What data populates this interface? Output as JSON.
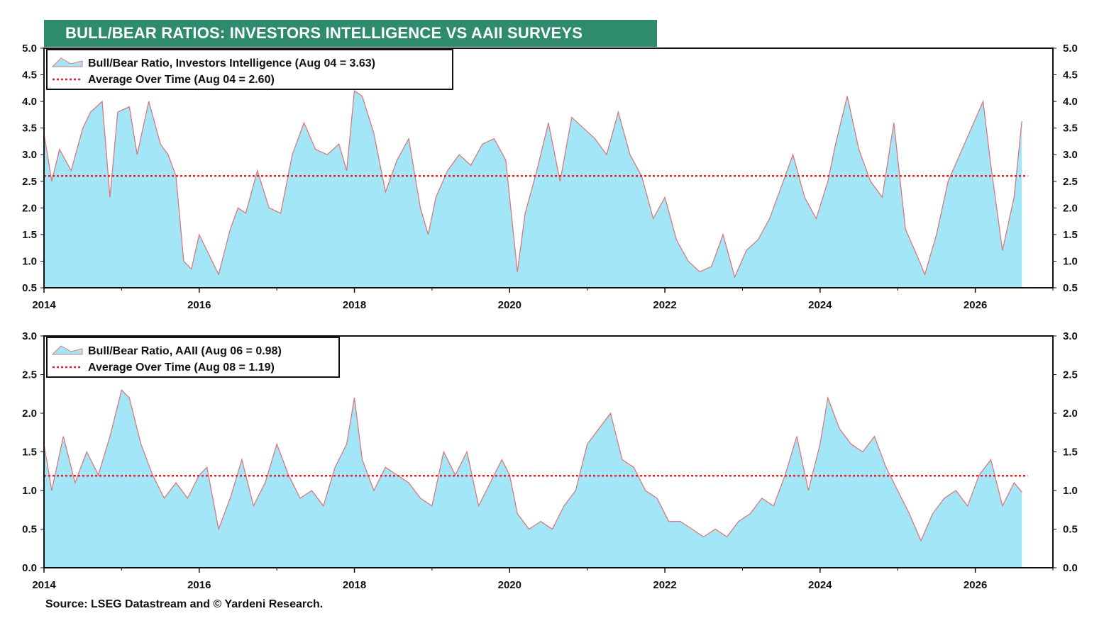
{
  "title": "BULL/BEAR RATIOS: INVESTORS INTELLIGENCE VS AAII SURVEYS",
  "source": "Source: LSEG Datastream and © Yardeni Research.",
  "colors": {
    "title_bg": "#2e8b6e",
    "area_fill": "#a3e6f8",
    "line": "#d9797c",
    "average": "#e8202a"
  },
  "chart_data": [
    {
      "type": "area",
      "x_axis_ticks": [
        "2014",
        "2016",
        "2018",
        "2020",
        "2022",
        "2024",
        "2026"
      ],
      "xlim": [
        2014,
        2027
      ],
      "ylim": [
        0.5,
        5.0
      ],
      "y_ticks": [
        "0.5",
        "1.0",
        "1.5",
        "2.0",
        "2.5",
        "3.0",
        "3.5",
        "4.0",
        "4.5",
        "5.0"
      ],
      "grid": false,
      "legend_position": "top-left",
      "series": [
        {
          "name": "Bull/Bear Ratio, Investors Intelligence (Aug 04 = 3.63)",
          "kind": "area",
          "x": [
            2014.0,
            2014.1,
            2014.2,
            2014.35,
            2014.5,
            2014.6,
            2014.75,
            2014.85,
            2014.95,
            2015.1,
            2015.2,
            2015.35,
            2015.5,
            2015.6,
            2015.7,
            2015.8,
            2015.9,
            2016.0,
            2016.1,
            2016.25,
            2016.4,
            2016.5,
            2016.6,
            2016.75,
            2016.9,
            2017.05,
            2017.2,
            2017.35,
            2017.5,
            2017.65,
            2017.8,
            2017.9,
            2018.0,
            2018.1,
            2018.25,
            2018.4,
            2018.55,
            2018.7,
            2018.85,
            2018.95,
            2019.05,
            2019.2,
            2019.35,
            2019.5,
            2019.65,
            2019.8,
            2019.95,
            2020.1,
            2020.2,
            2020.35,
            2020.5,
            2020.65,
            2020.8,
            2020.95,
            2021.1,
            2021.25,
            2021.4,
            2021.55,
            2021.7,
            2021.85,
            2022.0,
            2022.15,
            2022.3,
            2022.45,
            2022.6,
            2022.75,
            2022.9,
            2023.05,
            2023.2,
            2023.35,
            2023.5,
            2023.65,
            2023.8,
            2023.95,
            2024.1,
            2024.2,
            2024.35,
            2024.5,
            2024.65,
            2024.8,
            2024.95,
            2025.1,
            2025.25,
            2025.35,
            2025.5,
            2025.65,
            2025.8,
            2025.95,
            2026.1,
            2026.2,
            2026.35,
            2026.5,
            2026.6
          ],
          "y": [
            3.4,
            2.5,
            3.1,
            2.7,
            3.5,
            3.8,
            4.0,
            2.2,
            3.8,
            3.9,
            3.0,
            4.0,
            3.2,
            3.0,
            2.6,
            1.0,
            0.85,
            1.5,
            1.2,
            0.75,
            1.6,
            2.0,
            1.9,
            2.7,
            2.0,
            1.9,
            3.0,
            3.6,
            3.1,
            3.0,
            3.2,
            2.7,
            4.2,
            4.1,
            3.4,
            2.3,
            2.9,
            3.3,
            2.0,
            1.5,
            2.2,
            2.7,
            3.0,
            2.8,
            3.2,
            3.3,
            2.9,
            0.8,
            1.9,
            2.7,
            3.6,
            2.5,
            3.7,
            3.5,
            3.3,
            3.0,
            3.8,
            3.0,
            2.6,
            1.8,
            2.2,
            1.4,
            1.0,
            0.8,
            0.9,
            1.5,
            0.7,
            1.2,
            1.4,
            1.8,
            2.4,
            3.0,
            2.2,
            1.8,
            2.5,
            3.2,
            4.1,
            3.1,
            2.5,
            2.2,
            3.6,
            1.6,
            1.1,
            0.75,
            1.5,
            2.5,
            3.0,
            3.5,
            4.0,
            2.8,
            1.2,
            2.2,
            3.63
          ]
        },
        {
          "name": "Average Over Time (Aug 04 = 2.60)",
          "kind": "hline",
          "value": 2.6
        }
      ]
    },
    {
      "type": "area",
      "x_axis_ticks": [
        "2014",
        "2016",
        "2018",
        "2020",
        "2022",
        "2024",
        "2026"
      ],
      "xlim": [
        2014,
        2027
      ],
      "ylim": [
        0.0,
        3.0
      ],
      "y_ticks": [
        "0.0",
        "0.5",
        "1.0",
        "1.5",
        "2.0",
        "2.5",
        "3.0"
      ],
      "grid": false,
      "legend_position": "top-left",
      "series": [
        {
          "name": "Bull/Bear Ratio, AAII (Aug 06 = 0.98)",
          "kind": "area",
          "x": [
            2014.0,
            2014.1,
            2014.25,
            2014.4,
            2014.55,
            2014.7,
            2014.85,
            2015.0,
            2015.1,
            2015.25,
            2015.4,
            2015.55,
            2015.7,
            2015.85,
            2016.0,
            2016.1,
            2016.25,
            2016.4,
            2016.55,
            2016.7,
            2016.85,
            2017.0,
            2017.15,
            2017.3,
            2017.45,
            2017.6,
            2017.75,
            2017.9,
            2018.0,
            2018.1,
            2018.25,
            2018.4,
            2018.55,
            2018.7,
            2018.85,
            2019.0,
            2019.15,
            2019.3,
            2019.45,
            2019.6,
            2019.75,
            2019.9,
            2020.0,
            2020.1,
            2020.25,
            2020.4,
            2020.55,
            2020.7,
            2020.85,
            2021.0,
            2021.15,
            2021.3,
            2021.45,
            2021.6,
            2021.75,
            2021.9,
            2022.05,
            2022.2,
            2022.35,
            2022.5,
            2022.65,
            2022.8,
            2022.95,
            2023.1,
            2023.25,
            2023.4,
            2023.55,
            2023.7,
            2023.85,
            2024.0,
            2024.1,
            2024.25,
            2024.4,
            2024.55,
            2024.7,
            2024.85,
            2025.0,
            2025.15,
            2025.3,
            2025.45,
            2025.6,
            2025.75,
            2025.9,
            2026.05,
            2026.2,
            2026.35,
            2026.5,
            2026.6
          ],
          "y": [
            1.6,
            1.0,
            1.7,
            1.1,
            1.5,
            1.2,
            1.7,
            2.3,
            2.2,
            1.6,
            1.2,
            0.9,
            1.1,
            0.9,
            1.2,
            1.3,
            0.5,
            0.9,
            1.4,
            0.8,
            1.1,
            1.6,
            1.2,
            0.9,
            1.0,
            0.8,
            1.3,
            1.6,
            2.2,
            1.4,
            1.0,
            1.3,
            1.2,
            1.1,
            0.9,
            0.8,
            1.5,
            1.2,
            1.5,
            0.8,
            1.1,
            1.4,
            1.2,
            0.7,
            0.5,
            0.6,
            0.5,
            0.8,
            1.0,
            1.6,
            1.8,
            2.0,
            1.4,
            1.3,
            1.0,
            0.9,
            0.6,
            0.6,
            0.5,
            0.4,
            0.5,
            0.4,
            0.6,
            0.7,
            0.9,
            0.8,
            1.2,
            1.7,
            1.0,
            1.6,
            2.2,
            1.8,
            1.6,
            1.5,
            1.7,
            1.3,
            1.0,
            0.7,
            0.35,
            0.7,
            0.9,
            1.0,
            0.8,
            1.2,
            1.4,
            0.8,
            1.1,
            0.98
          ]
        },
        {
          "name": "Average Over Time (Aug 08 = 1.19)",
          "kind": "hline",
          "value": 1.19
        }
      ]
    }
  ]
}
